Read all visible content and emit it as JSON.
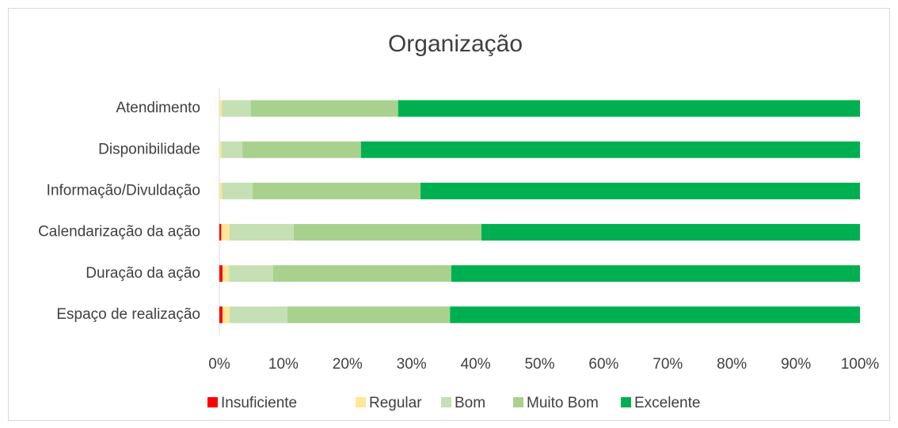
{
  "chart_data": {
    "type": "stacked-bar-horizontal",
    "title": "Organização",
    "categories": [
      "Atendimento",
      "Disponibilidade",
      "Informação/Divuldação",
      "Calendarização da ação",
      "Duração da ação",
      "Espaço de realização"
    ],
    "series": [
      {
        "name": "Insuficiente",
        "color": "#ff0000",
        "values": [
          0,
          0,
          0,
          0.3,
          0.5,
          0.5
        ]
      },
      {
        "name": "Regular",
        "color": "#ffe699",
        "values": [
          0.4,
          0.3,
          0.4,
          1.3,
          1.0,
          1.1
        ]
      },
      {
        "name": "Bom",
        "color": "#c5e0b4",
        "values": [
          4.5,
          3.3,
          4.8,
          10.0,
          6.9,
          9.0
        ]
      },
      {
        "name": "Muito Bom",
        "color": "#a9d18e",
        "values": [
          23.0,
          18.5,
          26.2,
          29.3,
          27.8,
          25.4
        ]
      },
      {
        "name": "Excelente",
        "color": "#00b050",
        "values": [
          72.1,
          77.9,
          68.6,
          59.1,
          63.8,
          64.0
        ]
      }
    ],
    "xlim": [
      0,
      100
    ],
    "xticks": [
      {
        "value": 0,
        "label": "0%"
      },
      {
        "value": 10,
        "label": "10%"
      },
      {
        "value": 20,
        "label": "20%"
      },
      {
        "value": 30,
        "label": "30%"
      },
      {
        "value": 40,
        "label": "40%"
      },
      {
        "value": 50,
        "label": "50%"
      },
      {
        "value": 60,
        "label": "60%"
      },
      {
        "value": 70,
        "label": "70%"
      },
      {
        "value": 80,
        "label": "80%"
      },
      {
        "value": 90,
        "label": "90%"
      },
      {
        "value": 100,
        "label": "100%"
      }
    ],
    "grid": false,
    "legend": "bottom"
  }
}
